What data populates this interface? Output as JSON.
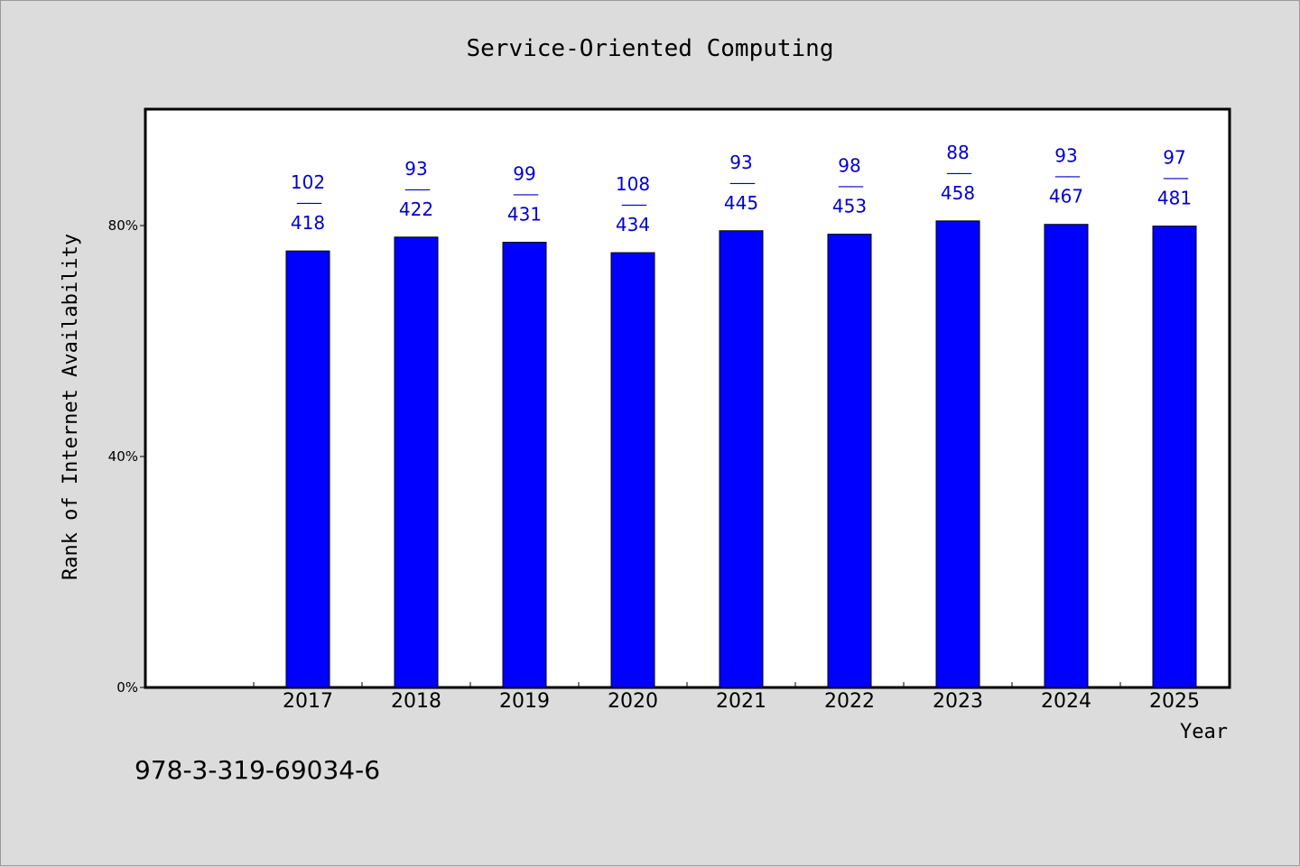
{
  "chart_data": {
    "type": "bar",
    "title": "Service-Oriented Computing",
    "xlabel": "Year",
    "ylabel": "Rank of Internet Availability",
    "ylim": [
      0,
      100
    ],
    "yticks": [
      {
        "value": 0,
        "label": "0%"
      },
      {
        "value": 40,
        "label": "40%"
      },
      {
        "value": 80,
        "label": "80%"
      }
    ],
    "categories": [
      "2017",
      "2018",
      "2019",
      "2020",
      "2021",
      "2022",
      "2023",
      "2024",
      "2025"
    ],
    "values": [
      75.6,
      78.0,
      77.1,
      75.3,
      79.1,
      78.5,
      80.8,
      80.2,
      79.9
    ],
    "data_labels": [
      {
        "top": "102",
        "sep": "——",
        "bottom": "418"
      },
      {
        "top": "93",
        "sep": "——",
        "bottom": "422"
      },
      {
        "top": "99",
        "sep": "——",
        "bottom": "431"
      },
      {
        "top": "108",
        "sep": "——",
        "bottom": "434"
      },
      {
        "top": "93",
        "sep": "——",
        "bottom": "445"
      },
      {
        "top": "98",
        "sep": "——",
        "bottom": "453"
      },
      {
        "top": "88",
        "sep": "——",
        "bottom": "458"
      },
      {
        "top": "93",
        "sep": "——",
        "bottom": "467"
      },
      {
        "top": "97",
        "sep": "——",
        "bottom": "481"
      }
    ],
    "bar_color": "#0000ff",
    "label_color": "#0000cc",
    "grid": false,
    "legend": "none"
  },
  "footer": {
    "isbn": "978-3-319-69034-6"
  }
}
